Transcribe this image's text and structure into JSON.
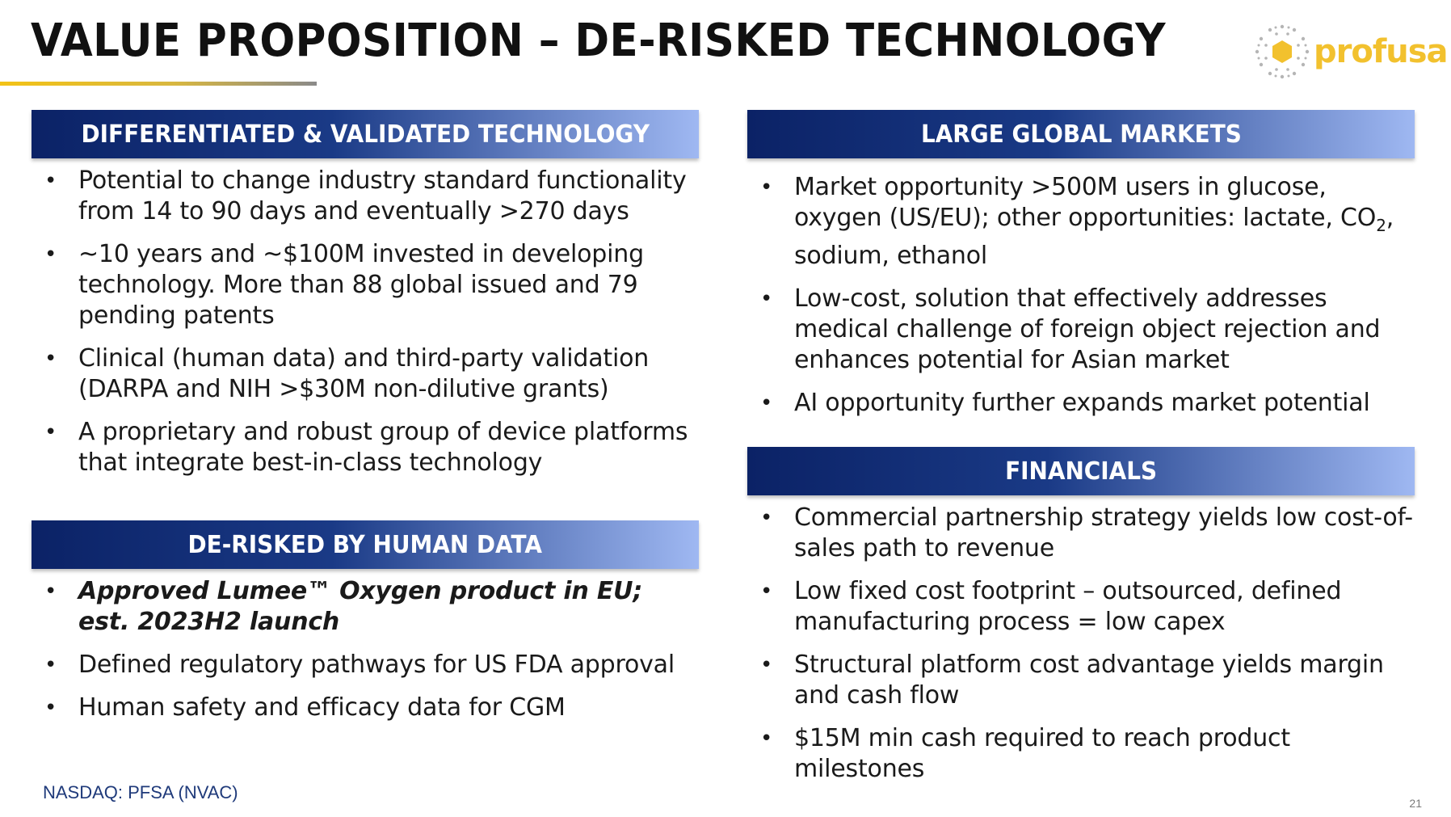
{
  "title": "VALUE PROPOSITION – DE-RISKED TECHNOLOGY",
  "logo": {
    "text": "profusa",
    "brand_color": "#f2c12e"
  },
  "colors": {
    "header_dark": "#0b2266",
    "header_light": "#9fb8f2",
    "accent_rule": "#f3c316"
  },
  "sections": {
    "tech": {
      "heading": "DIFFERENTIATED & VALIDATED TECHNOLOGY",
      "items": [
        "Potential to change industry standard functionality from 14 to 90 days and eventually >270 days",
        "~10 years and ~$100M invested in developing technology. More than 88 global issued and 79 pending patents",
        "Clinical (human data) and third-party validation (DARPA and NIH >$30M non-dilutive grants)",
        "A proprietary and robust group of device platforms that integrate best-in-class technology"
      ]
    },
    "human": {
      "heading": "DE-RISKED BY HUMAN DATA",
      "items": [
        "Approved Lumee™ Oxygen product in EU; est. 2023H2 launch",
        "Defined regulatory pathways for US FDA approval",
        "Human safety and efficacy data for CGM"
      ]
    },
    "markets": {
      "heading": "LARGE GLOBAL MARKETS",
      "item1_pre": "Market opportunity >500M users in glucose, oxygen (US/EU); other opportunities: lactate, CO",
      "item1_sub": "2",
      "item1_post": ",  sodium, ethanol",
      "items": [
        "Low-cost, solution that effectively addresses medical challenge of foreign object rejection and enhances potential for Asian market",
        "AI opportunity further expands market potential"
      ]
    },
    "financials": {
      "heading": "FINANCIALS",
      "items": [
        "Commercial partnership strategy yields low cost-of-sales path to revenue",
        "Low fixed cost footprint – outsourced, defined manufacturing process = low capex",
        "Structural platform cost advantage yields margin and cash flow",
        "$15M min cash required to reach product milestones"
      ]
    }
  },
  "bullet_char": "•",
  "footer": "NASDAQ: PFSA (NVAC)",
  "page_number": "21"
}
